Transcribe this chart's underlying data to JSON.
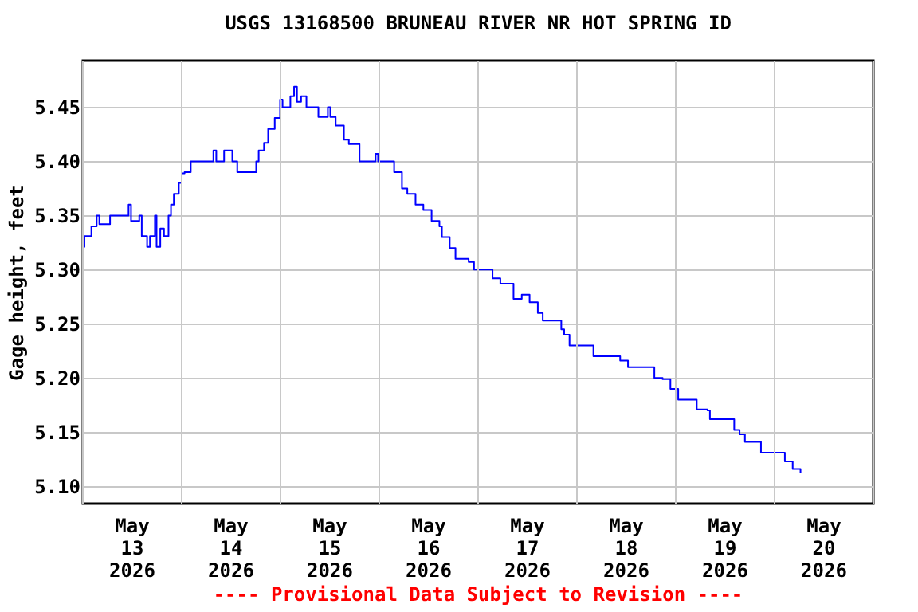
{
  "chart_data": {
    "type": "step",
    "title": "USGS 13168500 BRUNEAU RIVER NR HOT SPRING ID",
    "ylabel": "Gage height, feet",
    "annotations": [
      "---- Provisional Data Subject to Revision ----"
    ],
    "series": [
      {
        "color": "#0000ff",
        "x": [
          "2026-05-13T00:08",
          "2026-05-13T00:23",
          "2026-05-13T02:04",
          "2026-05-13T03:21",
          "2026-05-13T04:00",
          "2026-05-13T05:54",
          "2026-05-13T06:36",
          "2026-05-13T10:30",
          "2026-05-13T11:06",
          "2026-05-13T11:42",
          "2026-05-13T13:42",
          "2026-05-13T14:18",
          "2026-05-13T15:36",
          "2026-05-13T16:18",
          "2026-05-13T17:30",
          "2026-05-13T17:54",
          "2026-05-13T18:48",
          "2026-05-13T19:42",
          "2026-05-13T20:48",
          "2026-05-13T21:24",
          "2026-05-13T22:06",
          "2026-05-13T23:18",
          "2026-05-14T00:00",
          "2026-05-14T00:42",
          "2026-05-14T02:12",
          "2026-05-14T04:30",
          "2026-05-14T07:42",
          "2026-05-14T08:24",
          "2026-05-14T10:18",
          "2026-05-14T12:18",
          "2026-05-14T13:30",
          "2026-05-14T18:06",
          "2026-05-14T18:42",
          "2026-05-14T20:00",
          "2026-05-14T21:00",
          "2026-05-14T22:36",
          "2026-05-14T23:54",
          "2026-05-15T00:30",
          "2026-05-15T01:48",
          "2026-05-15T02:24",
          "2026-05-15T03:18",
          "2026-05-15T04:00",
          "2026-05-15T05:00",
          "2026-05-15T06:18",
          "2026-05-15T08:54",
          "2026-05-15T09:12",
          "2026-05-15T11:30",
          "2026-05-15T12:06",
          "2026-05-15T13:24",
          "2026-05-15T15:24",
          "2026-05-15T16:36",
          "2026-05-15T19:12",
          "2026-05-15T23:06",
          "2026-05-15T23:42",
          "2026-05-16T01:42",
          "2026-05-16T03:36",
          "2026-05-16T05:30",
          "2026-05-16T06:48",
          "2026-05-16T08:48",
          "2026-05-16T10:42",
          "2026-05-16T12:42",
          "2026-05-16T14:36",
          "2026-05-16T15:12",
          "2026-05-16T17:06",
          "2026-05-16T18:30",
          "2026-05-16T21:42",
          "2026-05-16T23:00",
          "2026-05-17T02:12",
          "2026-05-17T03:30",
          "2026-05-17T05:24",
          "2026-05-17T08:00",
          "2026-05-17T08:36",
          "2026-05-17T10:36",
          "2026-05-17T12:30",
          "2026-05-17T14:30",
          "2026-05-17T15:42",
          "2026-05-17T19:00",
          "2026-05-17T20:12",
          "2026-05-17T20:54",
          "2026-05-17T22:12",
          "2026-05-18T03:24",
          "2026-05-18T04:00",
          "2026-05-18T06:36",
          "2026-05-18T10:30",
          "2026-05-18T12:24",
          "2026-05-18T16:54",
          "2026-05-18T18:48",
          "2026-05-18T20:48",
          "2026-05-18T22:42",
          "2026-05-19T00:36",
          "2026-05-19T04:30",
          "2026-05-19T05:06",
          "2026-05-19T07:42",
          "2026-05-19T08:18",
          "2026-05-19T13:30",
          "2026-05-19T14:12",
          "2026-05-19T15:30",
          "2026-05-19T16:48",
          "2026-05-19T20:00",
          "2026-05-19T20:42",
          "2026-05-20T01:48",
          "2026-05-20T02:30",
          "2026-05-20T04:24",
          "2026-05-20T06:18"
        ],
        "values": [
          5.321,
          5.331,
          5.34,
          5.35,
          5.342,
          5.342,
          5.35,
          5.35,
          5.36,
          5.345,
          5.35,
          5.331,
          5.321,
          5.331,
          5.35,
          5.321,
          5.338,
          5.331,
          5.35,
          5.36,
          5.37,
          5.38,
          5.389,
          5.39,
          5.4,
          5.4,
          5.41,
          5.4,
          5.41,
          5.4,
          5.39,
          5.4,
          5.41,
          5.417,
          5.43,
          5.44,
          5.457,
          5.45,
          5.45,
          5.46,
          5.469,
          5.455,
          5.46,
          5.45,
          5.45,
          5.441,
          5.45,
          5.441,
          5.433,
          5.42,
          5.416,
          5.4,
          5.407,
          5.4,
          5.4,
          5.39,
          5.375,
          5.37,
          5.36,
          5.355,
          5.345,
          5.34,
          5.33,
          5.32,
          5.31,
          5.307,
          5.3,
          5.3,
          5.292,
          5.287,
          5.287,
          5.273,
          5.277,
          5.27,
          5.26,
          5.253,
          5.253,
          5.245,
          5.24,
          5.23,
          5.23,
          5.22,
          5.22,
          5.216,
          5.21,
          5.21,
          5.2,
          5.199,
          5.19,
          5.18,
          5.18,
          5.171,
          5.17,
          5.162,
          5.162,
          5.152,
          5.148,
          5.141,
          5.141,
          5.131,
          5.131,
          5.123,
          5.116,
          5.112
        ]
      }
    ],
    "xlim": [
      "2026-05-13T00:00",
      "2026-05-21T00:00"
    ],
    "xticks": [
      {
        "value": "2026-05-13T00:00",
        "label": null
      },
      {
        "value": "2026-05-13T12:00",
        "label": "May\n13\n2026"
      },
      {
        "value": "2026-05-14T00:00",
        "label": null
      },
      {
        "value": "2026-05-14T12:00",
        "label": "May\n14\n2026"
      },
      {
        "value": "2026-05-15T00:00",
        "label": null
      },
      {
        "value": "2026-05-15T12:00",
        "label": "May\n15\n2026"
      },
      {
        "value": "2026-05-16T00:00",
        "label": null
      },
      {
        "value": "2026-05-16T12:00",
        "label": "May\n16\n2026"
      },
      {
        "value": "2026-05-17T00:00",
        "label": null
      },
      {
        "value": "2026-05-17T12:00",
        "label": "May\n17\n2026"
      },
      {
        "value": "2026-05-18T00:00",
        "label": null
      },
      {
        "value": "2026-05-18T12:00",
        "label": "May\n18\n2026"
      },
      {
        "value": "2026-05-19T00:00",
        "label": null
      },
      {
        "value": "2026-05-19T12:00",
        "label": "May\n19\n2026"
      },
      {
        "value": "2026-05-20T00:00",
        "label": null
      },
      {
        "value": "2026-05-20T12:00",
        "label": "May\n20\n2026"
      },
      {
        "value": "2026-05-21T00:00",
        "label": null
      }
    ],
    "ylim": [
      5.084,
      5.493
    ],
    "yticks": [
      {
        "value": 5.1,
        "label": "5.10"
      },
      {
        "value": 5.15,
        "label": "5.15"
      },
      {
        "value": 5.2,
        "label": "5.20"
      },
      {
        "value": 5.25,
        "label": "5.25"
      },
      {
        "value": 5.3,
        "label": "5.30"
      },
      {
        "value": 5.35,
        "label": "5.35"
      },
      {
        "value": 5.4,
        "label": "5.40"
      },
      {
        "value": 5.45,
        "label": "5.45"
      }
    ],
    "grid": true
  }
}
